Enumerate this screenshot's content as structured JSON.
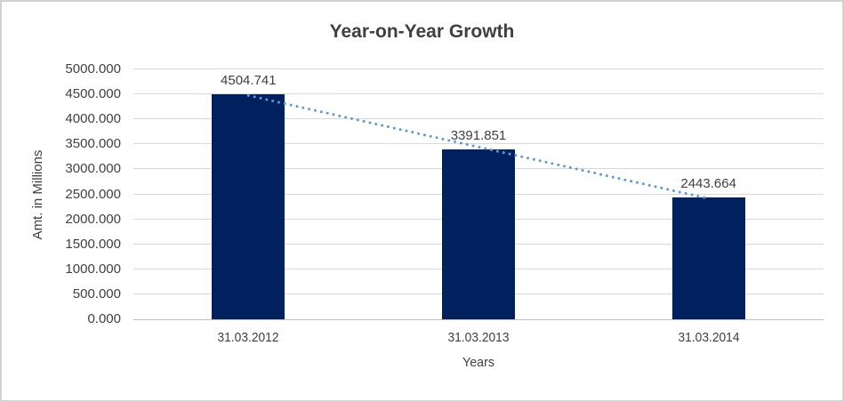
{
  "chart_data": {
    "type": "bar",
    "title": "Year-on-Year Growth",
    "xlabel": "Years",
    "ylabel": "Amt. in Millions",
    "categories": [
      "31.03.2012",
      "31.03.2013",
      "31.03.2014"
    ],
    "values": [
      4504.741,
      3391.851,
      2443.664
    ],
    "data_labels": [
      "4504.741",
      "3391.851",
      "2443.664"
    ],
    "ylim": [
      0,
      5000
    ],
    "ytick_step": 500,
    "ytick_labels": [
      "0.000",
      "500.000",
      "1000.000",
      "1500.000",
      "2000.000",
      "2500.000",
      "3000.000",
      "3500.000",
      "4000.000",
      "4500.000",
      "5000.000"
    ],
    "grid": true,
    "legend": "none",
    "trendline": {
      "type": "linear",
      "style": "dotted",
      "color": "#5B9BD5"
    },
    "colors": {
      "bar": "#00215E",
      "trendline": "#5B9BD5",
      "gridline": "#D9D9D9",
      "axis_line": "#BFBFBF",
      "text": "#404040",
      "background": "#FFFFFF",
      "border": "#D2D2D2"
    }
  }
}
